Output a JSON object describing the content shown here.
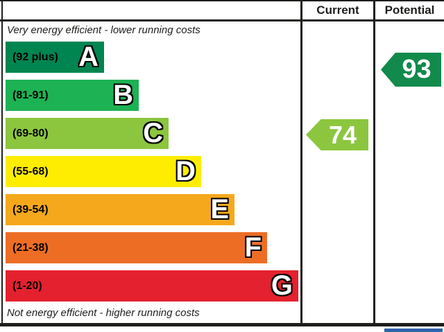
{
  "header": {
    "current": "Current",
    "potential": "Potential"
  },
  "captions": {
    "top": "Very energy efficient - lower running costs",
    "bottom": "Not energy efficient - higher running costs"
  },
  "bands": [
    {
      "letter": "A",
      "range": "(92 plus)",
      "color": "#008550"
    },
    {
      "letter": "B",
      "range": "(81-91)",
      "color": "#1db254"
    },
    {
      "letter": "C",
      "range": "(69-80)",
      "color": "#8cc63f"
    },
    {
      "letter": "D",
      "range": "(55-68)",
      "color": "#ffed00"
    },
    {
      "letter": "E",
      "range": "(39-54)",
      "color": "#f5a81c"
    },
    {
      "letter": "F",
      "range": "(21-38)",
      "color": "#ed6d25"
    },
    {
      "letter": "G",
      "range": "(1-20)",
      "color": "#e4212e"
    }
  ],
  "ratings": {
    "current": {
      "value": "74",
      "color": "#8cc63f"
    },
    "potential": {
      "value": "93",
      "color": "#118a4c"
    }
  },
  "misc": {
    "partial_box_color": "#2e64ae"
  },
  "chart_data": {
    "type": "bar",
    "categories": [
      "A",
      "B",
      "C",
      "D",
      "E",
      "F",
      "G"
    ],
    "band_labels": [
      "(92 plus)",
      "(81-91)",
      "(69-80)",
      "(55-68)",
      "(39-54)",
      "(21-38)",
      "(1-20)"
    ],
    "band_colors": [
      "#008550",
      "#1db254",
      "#8cc63f",
      "#ffed00",
      "#f5a81c",
      "#ed6d25",
      "#e4212e"
    ],
    "bar_relative_lengths": [
      142,
      192,
      235,
      282,
      330,
      377,
      422
    ],
    "columns": [
      "Current",
      "Potential"
    ],
    "current_rating": 74,
    "current_band": "C",
    "potential_rating": 93,
    "potential_band": "A",
    "annotations": [
      "Very energy efficient - lower running costs",
      "Not energy efficient - higher running costs"
    ],
    "legend_position": "none",
    "grid": false
  }
}
